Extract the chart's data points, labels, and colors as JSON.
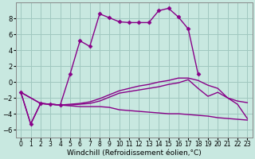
{
  "background_color": "#c8e8e0",
  "grid_color": "#a0c8c0",
  "line_color": "#880088",
  "marker": "D",
  "markersize": 2.5,
  "linewidth": 1.0,
  "xlabel": "Windchill (Refroidissement éolien,°C)",
  "xlabel_fontsize": 6.5,
  "tick_fontsize": 5.5,
  "xlim": [
    -0.5,
    23.5
  ],
  "ylim": [
    -7,
    10
  ],
  "yticks": [
    -6,
    -4,
    -2,
    0,
    2,
    4,
    6,
    8
  ],
  "xticks": [
    0,
    1,
    2,
    3,
    4,
    5,
    6,
    7,
    8,
    9,
    10,
    11,
    12,
    13,
    14,
    15,
    16,
    17,
    18,
    19,
    20,
    21,
    22,
    23
  ],
  "curve1_x": [
    0,
    1,
    2,
    3,
    4,
    5,
    6,
    7,
    8,
    9,
    10,
    11,
    12,
    13,
    14,
    15,
    16,
    17,
    18
  ],
  "curve1_y": [
    -1.3,
    -5.3,
    -2.7,
    -2.8,
    -2.9,
    1.0,
    5.2,
    4.5,
    8.6,
    8.1,
    7.6,
    7.5,
    7.5,
    7.5,
    9.0,
    9.3,
    8.2,
    6.7,
    1.0
  ],
  "curve2_x": [
    0,
    1,
    2,
    3,
    4,
    5,
    6,
    7,
    8,
    9,
    10,
    11,
    12,
    13,
    14,
    15,
    16,
    17,
    18,
    19,
    20,
    21,
    22,
    23
  ],
  "curve2_y": [
    -1.3,
    -5.3,
    -2.7,
    -2.8,
    -2.9,
    -3.0,
    -3.1,
    -3.1,
    -3.1,
    -3.2,
    -3.5,
    -3.6,
    -3.7,
    -3.8,
    -3.9,
    -4.0,
    -4.0,
    -4.1,
    -4.2,
    -4.3,
    -4.5,
    -4.6,
    -4.7,
    -4.8
  ],
  "curve3_x": [
    0,
    2,
    3,
    4,
    5,
    6,
    7,
    8,
    9,
    10,
    11,
    12,
    13,
    14,
    15,
    16,
    17,
    18,
    19,
    20,
    21,
    22,
    23
  ],
  "curve3_y": [
    -1.3,
    -2.7,
    -2.8,
    -2.9,
    -2.9,
    -2.8,
    -2.7,
    -2.4,
    -1.9,
    -1.4,
    -1.2,
    -1.0,
    -0.8,
    -0.6,
    -0.3,
    -0.1,
    0.3,
    -0.8,
    -1.8,
    -1.3,
    -2.0,
    -2.4,
    -2.6
  ],
  "curve4_x": [
    0,
    2,
    3,
    4,
    5,
    6,
    7,
    8,
    9,
    10,
    11,
    12,
    13,
    14,
    15,
    16,
    17,
    18,
    19,
    20,
    21,
    22,
    23
  ],
  "curve4_y": [
    -1.3,
    -2.7,
    -2.8,
    -2.9,
    -2.8,
    -2.7,
    -2.5,
    -2.1,
    -1.6,
    -1.1,
    -0.8,
    -0.5,
    -0.3,
    0.0,
    0.2,
    0.5,
    0.5,
    0.2,
    -0.4,
    -0.8,
    -2.0,
    -2.8,
    -4.6
  ]
}
